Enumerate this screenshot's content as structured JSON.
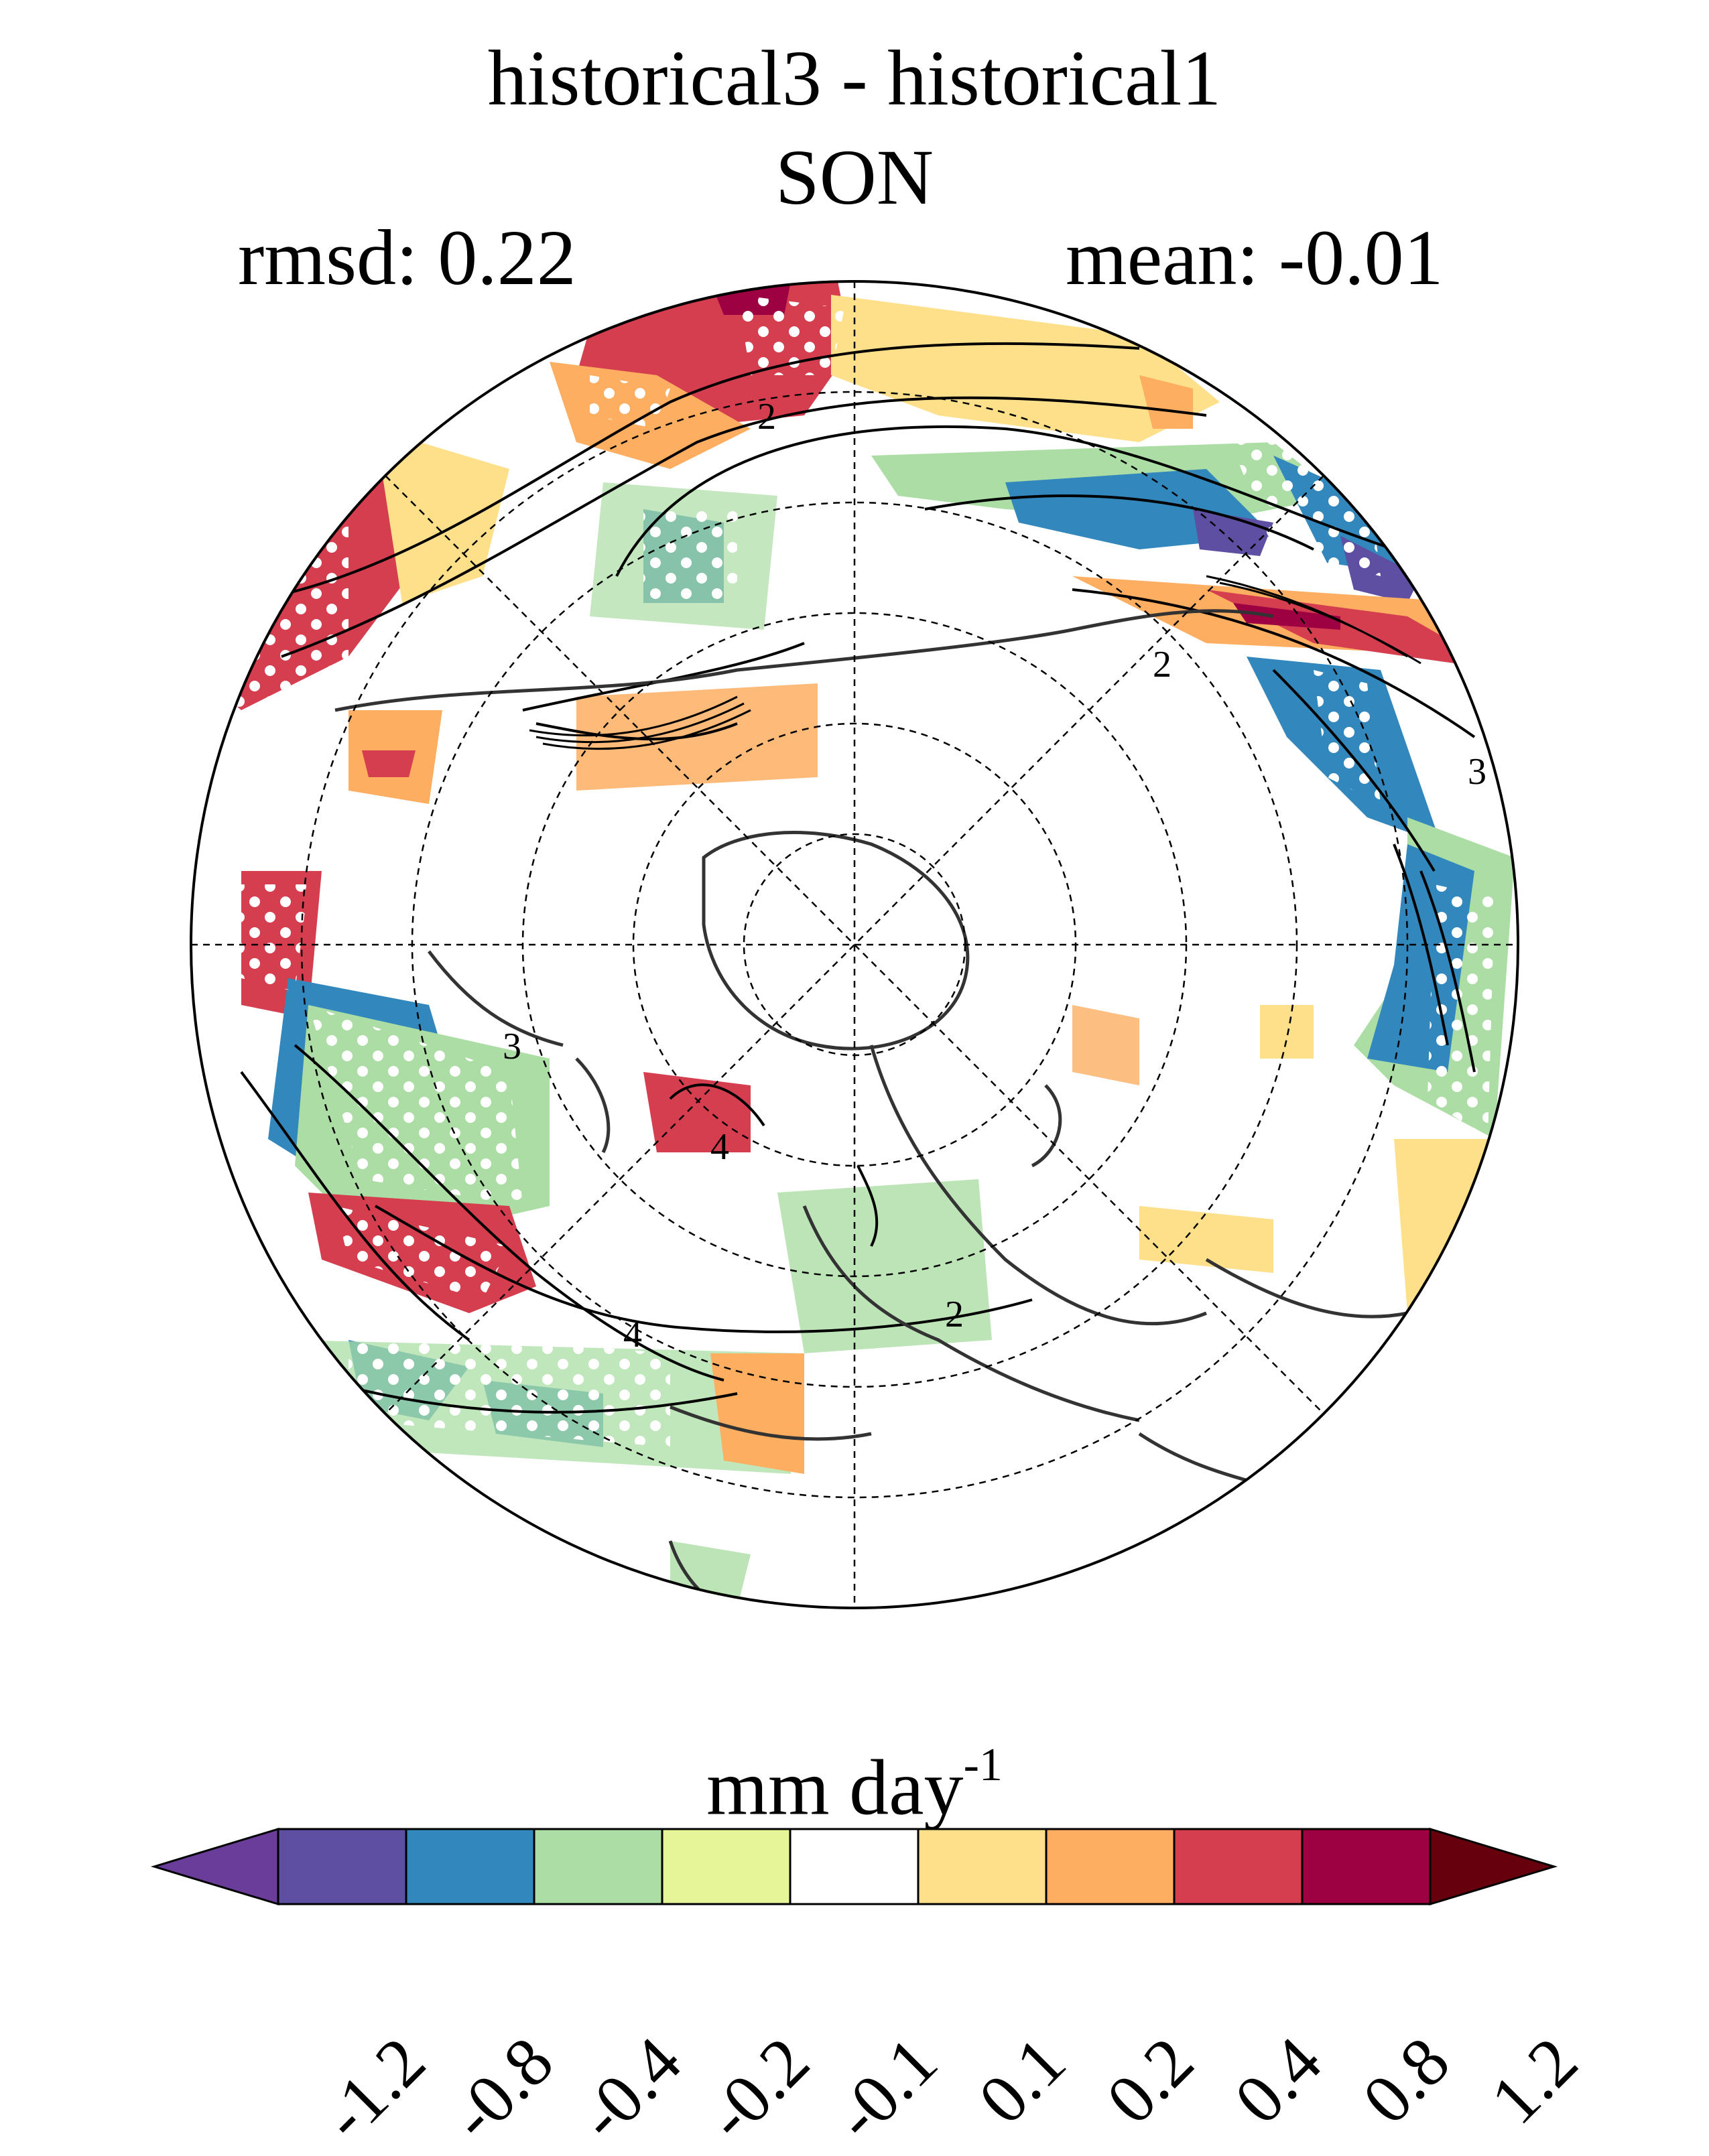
{
  "title": "historical3 - historical1",
  "season": "SON",
  "stats": {
    "rmsd_label": "rmsd: 0.22",
    "mean_label": "mean: -0.01"
  },
  "map": {
    "projection": "north-polar-stereographic",
    "contour_labels": [
      "2",
      "2",
      "3",
      "4",
      "2",
      "3",
      "4"
    ],
    "stippling": "significance"
  },
  "colorbar": {
    "units_base": "mm day",
    "units_exp": "-1",
    "ticks": [
      "-1.2",
      "-0.8",
      "-0.4",
      "-0.2",
      "-0.1",
      "0.1",
      "0.2",
      "0.4",
      "0.8",
      "1.2"
    ],
    "colors": [
      "#6a3d9a",
      "#5e4fa2",
      "#3288bd",
      "#abdda4",
      "#e6f598",
      "#ffffff",
      "#fee08b",
      "#fdae61",
      "#d53e4f",
      "#9e0142",
      "#67000d"
    ]
  }
}
